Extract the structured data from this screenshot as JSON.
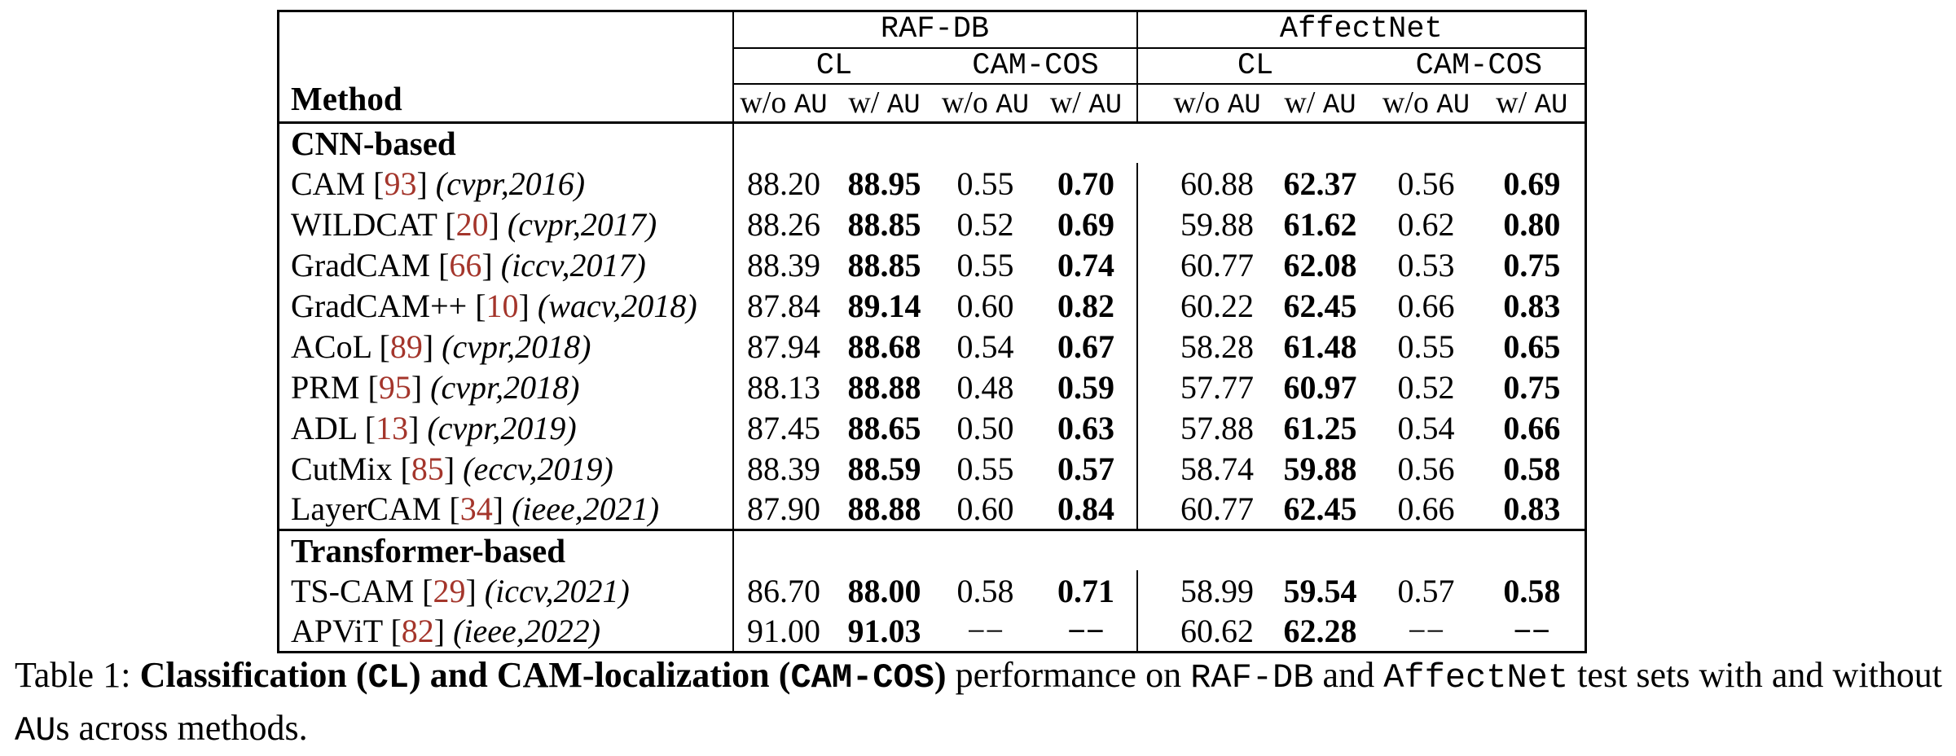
{
  "colors": {
    "citation_red": "#A4352B",
    "rule_black": "#000000",
    "background": "#ffffff"
  },
  "table": {
    "method_header": "Method",
    "group_headers": [
      "RAF-DB",
      "AffectNet"
    ],
    "sub_headers": [
      "CL",
      "CAM-COS",
      "CL",
      "CAM-COS"
    ],
    "au_headers": [
      {
        "prefix": "w/o ",
        "unit": "AU"
      },
      {
        "prefix": "w/ ",
        "unit": "AU"
      },
      {
        "prefix": "w/o ",
        "unit": "AU"
      },
      {
        "prefix": "w/ ",
        "unit": "AU"
      },
      {
        "prefix": "w/o ",
        "unit": "AU"
      },
      {
        "prefix": "w/ ",
        "unit": "AU"
      },
      {
        "prefix": "w/o ",
        "unit": "AU"
      },
      {
        "prefix": "w/ ",
        "unit": "AU"
      }
    ],
    "rows": [
      {
        "type": "section",
        "label": "CNN-based"
      },
      {
        "type": "method",
        "name": "CAM",
        "cite": "93",
        "venue": "(cvpr,2016)",
        "values": [
          "88.20",
          "88.95",
          "0.55",
          "0.70",
          "60.88",
          "62.37",
          "0.56",
          "0.69"
        ]
      },
      {
        "type": "method",
        "name": "WILDCAT",
        "cite": "20",
        "venue": "(cvpr,2017)",
        "values": [
          "88.26",
          "88.85",
          "0.52",
          "0.69",
          "59.88",
          "61.62",
          "0.62",
          "0.80"
        ]
      },
      {
        "type": "method",
        "name": "GradCAM",
        "cite": "66",
        "venue": "(iccv,2017)",
        "values": [
          "88.39",
          "88.85",
          "0.55",
          "0.74",
          "60.77",
          "62.08",
          "0.53",
          "0.75"
        ]
      },
      {
        "type": "method",
        "name": "GradCAM++",
        "cite": "10",
        "venue": "(wacv,2018)",
        "values": [
          "87.84",
          "89.14",
          "0.60",
          "0.82",
          "60.22",
          "62.45",
          "0.66",
          "0.83"
        ]
      },
      {
        "type": "method",
        "name": "ACoL",
        "cite": "89",
        "venue": "(cvpr,2018)",
        "values": [
          "87.94",
          "88.68",
          "0.54",
          "0.67",
          "58.28",
          "61.48",
          "0.55",
          "0.65"
        ]
      },
      {
        "type": "method",
        "name": "PRM",
        "cite": "95",
        "venue": "(cvpr,2018)",
        "values": [
          "88.13",
          "88.88",
          "0.48",
          "0.59",
          "57.77",
          "60.97",
          "0.52",
          "0.75"
        ]
      },
      {
        "type": "method",
        "name": "ADL",
        "cite": "13",
        "venue": "(cvpr,2019)",
        "values": [
          "87.45",
          "88.65",
          "0.50",
          "0.63",
          "57.88",
          "61.25",
          "0.54",
          "0.66"
        ]
      },
      {
        "type": "method",
        "name": "CutMix",
        "cite": "85",
        "venue": "(eccv,2019)",
        "values": [
          "88.39",
          "88.59",
          "0.55",
          "0.57",
          "58.74",
          "59.88",
          "0.56",
          "0.58"
        ]
      },
      {
        "type": "method",
        "name": "LayerCAM",
        "cite": "34",
        "venue": "(ieee,2021)",
        "values": [
          "87.90",
          "88.88",
          "0.60",
          "0.84",
          "60.77",
          "62.45",
          "0.66",
          "0.83"
        ]
      },
      {
        "type": "section",
        "label": "Transformer-based"
      },
      {
        "type": "method",
        "name": "TS-CAM",
        "cite": "29",
        "venue": "(iccv,2021)",
        "values": [
          "86.70",
          "88.00",
          "0.58",
          "0.71",
          "58.99",
          "59.54",
          "0.57",
          "0.58"
        ]
      },
      {
        "type": "method",
        "name": "APViT",
        "cite": "82",
        "venue": "(ieee,2022)",
        "values": [
          "91.00",
          "91.03",
          "−−",
          "−−",
          "60.62",
          "62.28",
          "−−",
          "−−"
        ]
      }
    ]
  },
  "caption": {
    "prefix": "Table 1: ",
    "bold_pre": "Classification (",
    "mono_cl": "CL",
    "bold_mid": ") and CAM-localization (",
    "mono_camcos": "CAM-COS",
    "bold_post": ") ",
    "text_performance": "performance on ",
    "mono_rafdb": "RAF-DB",
    "text_and": " and ",
    "mono_affectnet": "AffectNet",
    "text_testsets": " test sets with and without ",
    "mono_au": "AU",
    "text_end": "s across methods."
  }
}
